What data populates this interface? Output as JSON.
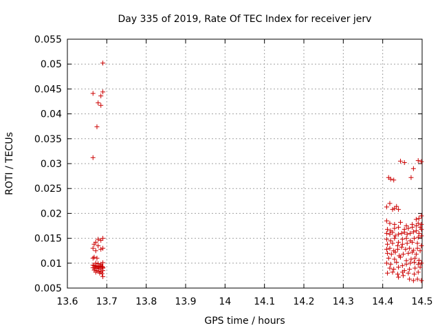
{
  "chart_data": {
    "type": "scatter",
    "title": "Day 335 of 2019, Rate Of TEC Index for receiver jerv",
    "xlabel": "GPS time / hours",
    "ylabel": "ROTI / TECUs",
    "xlim": [
      13.6,
      14.5
    ],
    "ylim": [
      0.005,
      0.055
    ],
    "xticks": [
      13.6,
      13.7,
      13.8,
      13.9,
      14.0,
      14.1,
      14.2,
      14.3,
      14.4,
      14.5
    ],
    "xtick_labels": [
      "13.6",
      "13.7",
      "13.8",
      "13.9",
      "14",
      "14.1",
      "14.2",
      "14.3",
      "14.4",
      "14.5"
    ],
    "yticks": [
      0.005,
      0.01,
      0.015,
      0.02,
      0.025,
      0.03,
      0.035,
      0.04,
      0.045,
      0.05,
      0.055
    ],
    "ytick_labels": [
      "0.005",
      "0.01",
      "0.015",
      "0.02",
      "0.025",
      "0.03",
      "0.035",
      "0.04",
      "0.045",
      "0.05",
      "0.055"
    ],
    "grid": true,
    "marker": "+",
    "color": "#cc0000",
    "series": [
      {
        "name": "ROTI",
        "x": [
          13.69,
          13.665,
          13.69,
          13.685,
          13.678,
          13.685,
          13.675,
          13.665,
          13.678,
          13.685,
          13.69,
          13.672,
          13.668,
          13.678,
          13.69,
          13.665,
          13.685,
          13.672,
          13.668,
          13.675,
          13.665,
          13.69,
          13.672,
          13.678,
          13.685,
          13.665,
          13.668,
          13.672,
          13.675,
          13.678,
          13.682,
          13.685,
          13.688,
          13.69,
          13.665,
          13.67,
          13.675,
          13.68,
          13.685,
          13.69,
          13.668,
          13.675,
          13.68,
          13.685,
          13.69,
          13.672,
          13.682,
          13.688,
          13.69,
          14.445,
          14.455,
          14.49,
          14.498,
          14.478,
          14.415,
          14.42,
          14.428,
          14.472,
          14.41,
          14.418,
          14.425,
          14.43,
          14.44,
          14.435,
          14.485,
          14.498,
          14.492,
          14.41,
          14.418,
          14.43,
          14.445,
          14.46,
          14.475,
          14.49,
          14.498,
          14.412,
          14.42,
          14.43,
          14.44,
          14.455,
          14.465,
          14.475,
          14.485,
          14.495,
          14.41,
          14.418,
          14.425,
          14.432,
          14.44,
          14.448,
          14.455,
          14.462,
          14.47,
          14.478,
          14.485,
          14.492,
          14.498,
          14.41,
          14.42,
          14.43,
          14.44,
          14.45,
          14.46,
          14.47,
          14.48,
          14.49,
          14.498,
          14.412,
          14.425,
          14.438,
          14.45,
          14.462,
          14.475,
          14.488,
          14.41,
          14.418,
          14.428,
          14.438,
          14.448,
          14.458,
          14.468,
          14.478,
          14.488,
          14.498,
          14.412,
          14.422,
          14.432,
          14.442,
          14.452,
          14.465,
          14.475,
          14.485,
          14.495,
          14.415,
          14.43,
          14.445,
          14.46,
          14.472,
          14.482,
          14.492,
          14.41,
          14.42,
          14.435,
          14.45,
          14.46,
          14.47,
          14.48,
          14.49,
          14.498,
          14.418,
          14.428,
          14.44,
          14.455,
          14.468,
          14.482,
          14.495,
          14.412,
          14.425,
          14.438,
          14.45,
          14.465,
          14.48,
          14.49,
          14.44,
          14.452,
          14.468,
          14.478,
          14.488,
          14.498
        ],
        "y": [
          0.0502,
          0.0441,
          0.0444,
          0.0436,
          0.0422,
          0.0417,
          0.0374,
          0.0312,
          0.0148,
          0.0146,
          0.015,
          0.0142,
          0.0138,
          0.0135,
          0.013,
          0.013,
          0.0128,
          0.0125,
          0.0112,
          0.011,
          0.011,
          0.0101,
          0.01,
          0.0099,
          0.0098,
          0.0096,
          0.0095,
          0.0094,
          0.0093,
          0.0092,
          0.0094,
          0.0095,
          0.0093,
          0.0092,
          0.0091,
          0.009,
          0.0089,
          0.009,
          0.0088,
          0.009,
          0.0086,
          0.0085,
          0.0084,
          0.0083,
          0.0085,
          0.0082,
          0.008,
          0.0079,
          0.0073,
          0.0305,
          0.0302,
          0.0306,
          0.0304,
          0.029,
          0.0272,
          0.0269,
          0.0267,
          0.0272,
          0.0213,
          0.022,
          0.0208,
          0.021,
          0.0208,
          0.0214,
          0.0188,
          0.0195,
          0.019,
          0.0185,
          0.018,
          0.0178,
          0.0182,
          0.0175,
          0.0178,
          0.018,
          0.0178,
          0.0168,
          0.0165,
          0.017,
          0.0172,
          0.0168,
          0.017,
          0.0172,
          0.0175,
          0.0172,
          0.016,
          0.0158,
          0.0162,
          0.0155,
          0.0158,
          0.016,
          0.0162,
          0.0158,
          0.016,
          0.0163,
          0.0165,
          0.016,
          0.0168,
          0.0148,
          0.0145,
          0.015,
          0.0142,
          0.0148,
          0.015,
          0.0145,
          0.015,
          0.0152,
          0.0155,
          0.0138,
          0.014,
          0.0135,
          0.0138,
          0.014,
          0.0142,
          0.014,
          0.0128,
          0.013,
          0.0125,
          0.0128,
          0.0132,
          0.0128,
          0.013,
          0.0126,
          0.013,
          0.0135,
          0.012,
          0.0118,
          0.0122,
          0.0115,
          0.0118,
          0.012,
          0.0122,
          0.0118,
          0.0125,
          0.011,
          0.0108,
          0.0112,
          0.0105,
          0.0108,
          0.011,
          0.0106,
          0.01,
          0.0098,
          0.0102,
          0.0095,
          0.0098,
          0.01,
          0.0102,
          0.0098,
          0.01,
          0.009,
          0.0088,
          0.0092,
          0.0085,
          0.0088,
          0.009,
          0.0092,
          0.008,
          0.0082,
          0.0078,
          0.0082,
          0.008,
          0.0078,
          0.0082,
          0.0072,
          0.0075,
          0.0068,
          0.0065,
          0.0068,
          0.0065
        ]
      }
    ]
  }
}
